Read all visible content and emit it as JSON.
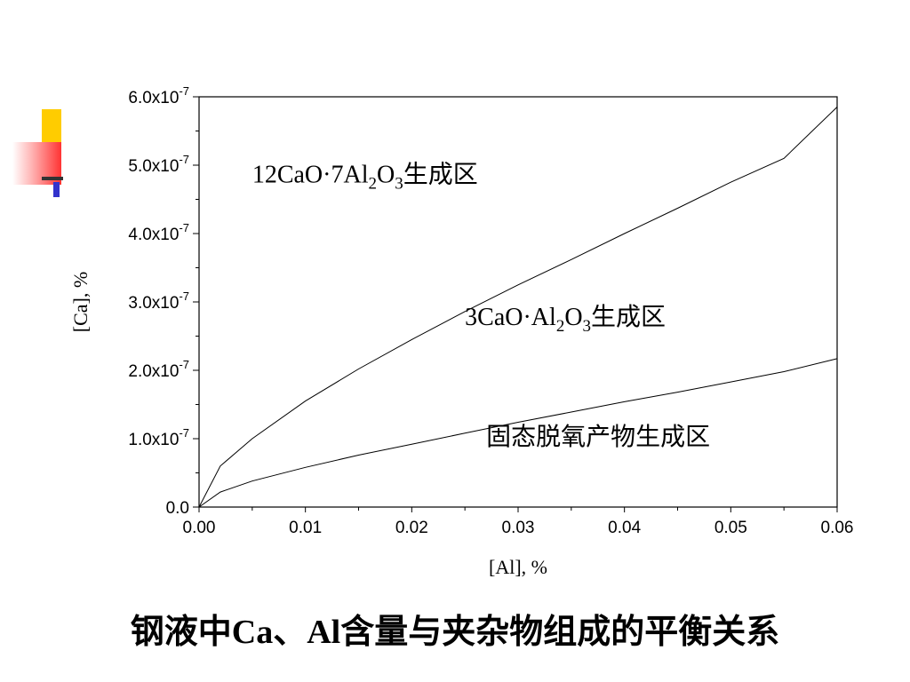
{
  "caption": {
    "part1": "钢液中",
    "part2": "Ca",
    "part3": "、",
    "part4": "Al",
    "part5": "含量与夹杂物组成的平衡关系"
  },
  "decoration": {
    "colors": {
      "yellow": "#ffcc00",
      "red": "#ff3333",
      "blue": "#3333cc",
      "dark": "#333333"
    }
  },
  "chart_data": {
    "type": "line",
    "xlabel": "[Al], %",
    "ylabel": "[Ca], %",
    "xlim": [
      0,
      0.06
    ],
    "ylim": [
      0,
      6e-07
    ],
    "x_ticks": [
      "0.00",
      "0.01",
      "0.02",
      "0.03",
      "0.04",
      "0.05",
      "0.06"
    ],
    "x_tick_values": [
      0,
      0.01,
      0.02,
      0.03,
      0.04,
      0.05,
      0.06
    ],
    "y_ticks": [
      {
        "value": 0,
        "base": "0.0",
        "exp": ""
      },
      {
        "value": 1e-07,
        "base": "1.0x10",
        "exp": "-7"
      },
      {
        "value": 2e-07,
        "base": "2.0x10",
        "exp": "-7"
      },
      {
        "value": 3e-07,
        "base": "3.0x10",
        "exp": "-7"
      },
      {
        "value": 4e-07,
        "base": "4.0x10",
        "exp": "-7"
      },
      {
        "value": 5e-07,
        "base": "5.0x10",
        "exp": "-7"
      },
      {
        "value": 6e-07,
        "base": "6.0x10",
        "exp": "-7"
      }
    ],
    "series": [
      {
        "x": [
          0,
          0.002,
          0.005,
          0.01,
          0.015,
          0.02,
          0.025,
          0.03,
          0.035,
          0.04,
          0.045,
          0.05,
          0.055,
          0.06
        ],
        "y": [
          0,
          6e-08,
          1e-07,
          1.55e-07,
          2.02e-07,
          2.45e-07,
          2.86e-07,
          3.25e-07,
          3.62e-07,
          4e-07,
          4.37e-07,
          4.75e-07,
          5.1e-07,
          5.85e-07
        ]
      },
      {
        "x": [
          0,
          0.002,
          0.005,
          0.01,
          0.015,
          0.02,
          0.025,
          0.03,
          0.035,
          0.04,
          0.045,
          0.05,
          0.055,
          0.06
        ],
        "y": [
          0,
          2.2e-08,
          3.8e-08,
          5.8e-08,
          7.6e-08,
          9.2e-08,
          1.08e-07,
          1.24e-07,
          1.39e-07,
          1.54e-07,
          1.68e-07,
          1.83e-07,
          1.98e-07,
          2.17e-07
        ]
      }
    ],
    "annotations": [
      {
        "base": "12CaO·7Al",
        "s1": "2",
        "mid": "O",
        "s2": "3",
        "tail": "生成区",
        "x": 0.005,
        "y": 4.75e-07
      },
      {
        "base": "3CaO·Al",
        "s1": "2",
        "mid": "O",
        "s2": "3",
        "tail": "生成区",
        "x": 0.025,
        "y": 2.66e-07
      },
      {
        "base": "固态脱氧产物生成区",
        "s1": "",
        "mid": "",
        "s2": "",
        "tail": "",
        "x": 0.027,
        "y": 9.1e-08
      }
    ]
  }
}
